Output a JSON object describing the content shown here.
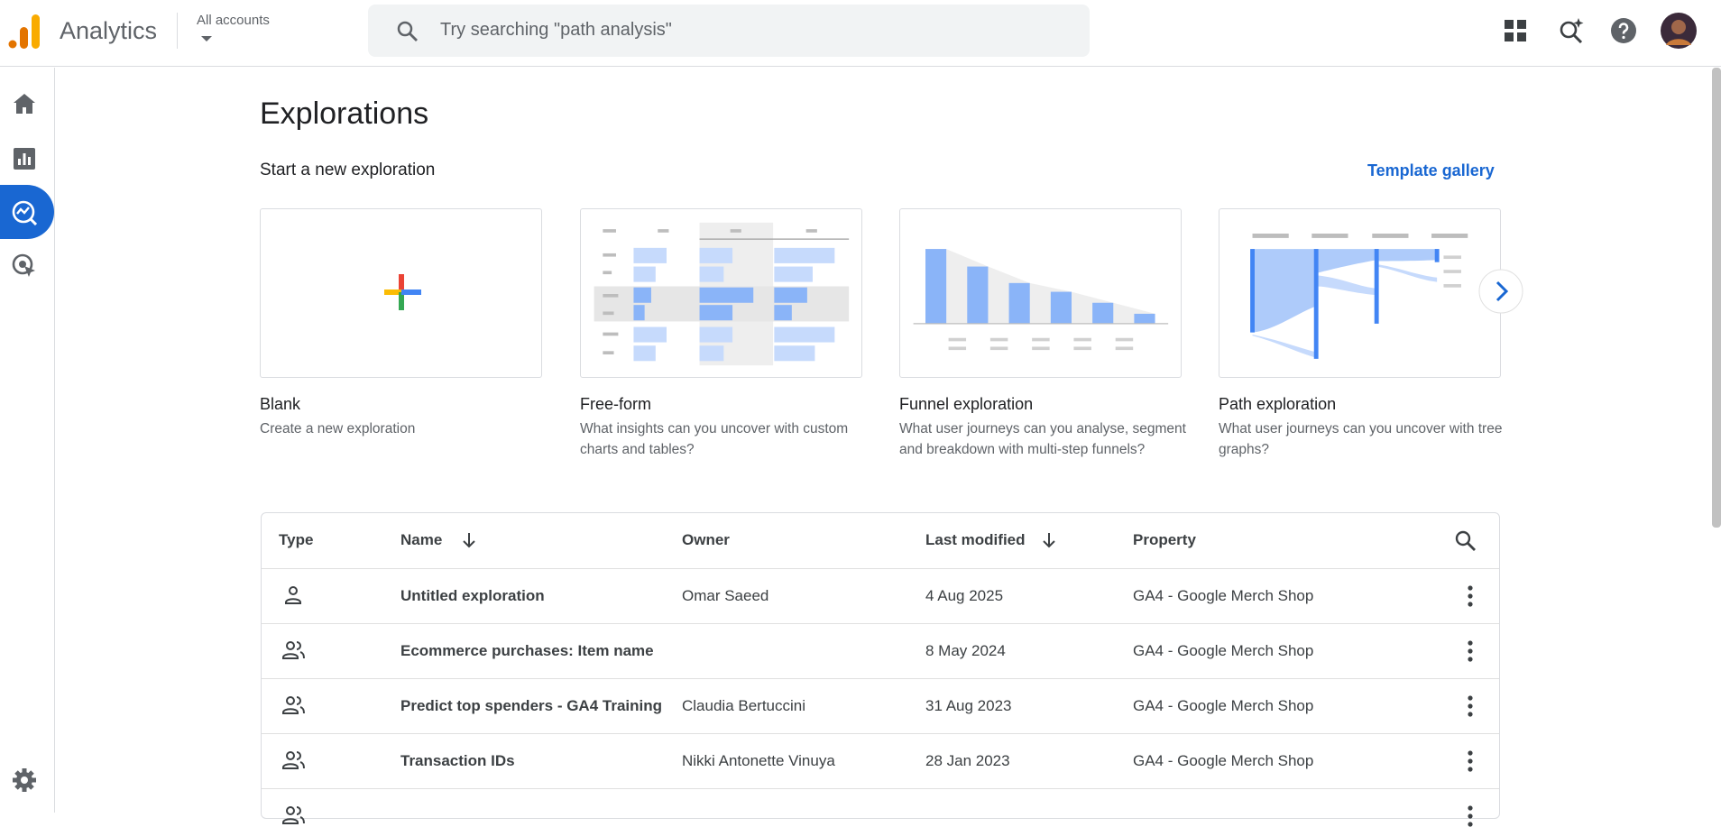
{
  "header": {
    "product": "Analytics",
    "account_label": "All accounts",
    "search_placeholder": "Try searching \"path analysis\""
  },
  "page": {
    "title": "Explorations",
    "section_title": "Start a new exploration",
    "template_link": "Template gallery"
  },
  "templates": [
    {
      "title": "Blank",
      "description": "Create a new exploration"
    },
    {
      "title": "Free-form",
      "description": "What insights can you uncover with custom charts and tables?"
    },
    {
      "title": "Funnel exploration",
      "description": "What user journeys can you analyse, segment and breakdown with multi-step funnels?"
    },
    {
      "title": "Path exploration",
      "description": "What user journeys can you uncover with tree graphs?"
    }
  ],
  "table": {
    "columns": [
      "Type",
      "Name",
      "Owner",
      "Last modified",
      "Property"
    ],
    "rows": [
      [
        "Untitled exploration",
        "Omar Saeed",
        "4 Aug 2025",
        "GA4 - Google Merch Shop"
      ],
      [
        "Ecommerce purchases: Item name",
        "",
        "8 May 2024",
        "GA4 - Google Merch Shop"
      ],
      [
        "Predict top spenders - GA4 Training",
        "Claudia Bertuccini",
        "31 Aug 2023",
        "GA4 - Google Merch Shop"
      ],
      [
        "Transaction IDs",
        "Nikki Antonette Vinuya",
        "28 Jan 2023",
        "GA4 - Google Merch Shop"
      ]
    ]
  }
}
